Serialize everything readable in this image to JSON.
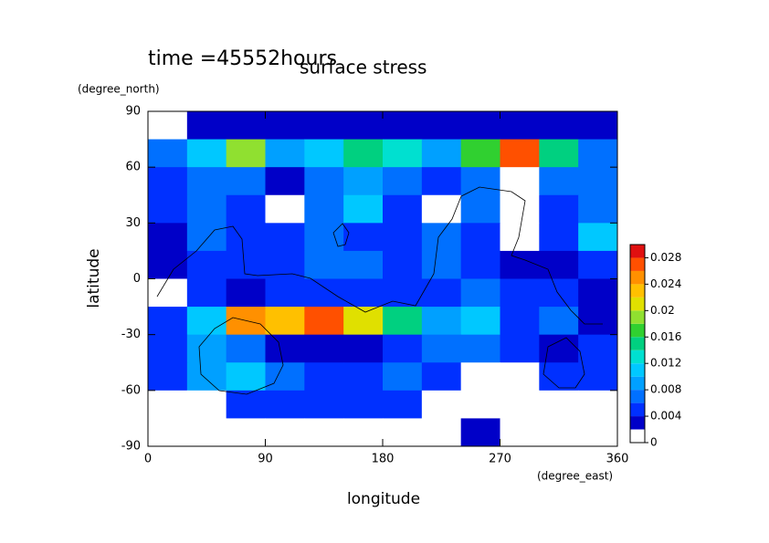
{
  "chart_data": {
    "type": "contour",
    "time_label": "time =45552hours",
    "title": "surface stress",
    "x_label": "longitude",
    "x_unit": "(degree_east)",
    "y_label": "latitude",
    "y_unit": "(degree_north)",
    "xlim": [
      0,
      360
    ],
    "xticks": [
      0,
      90,
      180,
      270,
      360
    ],
    "ylim": [
      -90,
      90
    ],
    "yticks": [
      -90,
      -60,
      -30,
      0,
      30,
      60,
      90
    ],
    "x": [
      15,
      45,
      75,
      105,
      135,
      165,
      195,
      225,
      255,
      285,
      315,
      345
    ],
    "y": [
      82.5,
      67.5,
      52.5,
      37.5,
      22.5,
      7.5,
      -7.5,
      -22.5,
      -37.5,
      -52.5,
      -67.5,
      -82.5
    ],
    "values": [
      [
        0.001,
        0.003,
        0.003,
        0.003,
        0.003,
        0.003,
        0.003,
        0.003,
        0.003,
        0.003,
        0.003,
        0.003
      ],
      [
        0.006,
        0.01,
        0.018,
        0.008,
        0.01,
        0.014,
        0.012,
        0.008,
        0.016,
        0.026,
        0.014,
        0.006
      ],
      [
        0.005,
        0.007,
        0.007,
        0.003,
        0.006,
        0.008,
        0.007,
        0.004,
        0.006,
        0.001,
        0.006,
        0.007
      ],
      [
        0.004,
        0.007,
        0.004,
        0.001,
        0.006,
        0.01,
        0.005,
        0.001,
        0.006,
        0.001,
        0.005,
        0.006
      ],
      [
        0.003,
        0.006,
        0.004,
        0.005,
        0.006,
        0.004,
        0.004,
        0.006,
        0.005,
        0.001,
        0.005,
        0.01
      ],
      [
        0.003,
        0.004,
        0.004,
        0.005,
        0.006,
        0.006,
        0.005,
        0.006,
        0.005,
        0.003,
        0.003,
        0.005
      ],
      [
        0.001,
        0.004,
        0.003,
        0.004,
        0.005,
        0.004,
        0.005,
        0.005,
        0.006,
        0.004,
        0.005,
        0.003
      ],
      [
        0.004,
        0.01,
        0.024,
        0.022,
        0.026,
        0.02,
        0.014,
        0.008,
        0.01,
        0.005,
        0.006,
        0.003
      ],
      [
        0.005,
        0.008,
        0.006,
        0.003,
        0.002,
        0.002,
        0.005,
        0.006,
        0.006,
        0.004,
        0.002,
        0.004
      ],
      [
        0.004,
        0.008,
        0.01,
        0.006,
        0.005,
        0.005,
        0.006,
        0.004,
        0.001,
        0.001,
        0.004,
        0.005
      ],
      [
        0.001,
        0.001,
        0.004,
        0.004,
        0.004,
        0.005,
        0.004,
        0.001,
        0.001,
        0.001,
        0.001,
        0.001
      ],
      [
        0.001,
        0.001,
        0.001,
        0.001,
        0.001,
        0.001,
        0.001,
        0.001,
        0.003,
        0.001,
        0.001,
        0.001
      ]
    ],
    "levels": [
      0,
      0.002,
      0.004,
      0.006,
      0.008,
      0.01,
      0.012,
      0.014,
      0.016,
      0.018,
      0.02,
      0.022,
      0.024,
      0.026,
      0.028,
      0.03
    ],
    "colors": [
      "#ffffff",
      "#0000c8",
      "#0030ff",
      "#0070ff",
      "#00a0ff",
      "#00c8ff",
      "#00e0d0",
      "#00d080",
      "#30d030",
      "#90e030",
      "#e0e000",
      "#ffc000",
      "#ff9000",
      "#ff5000",
      "#e01010"
    ],
    "cticks": [
      0,
      0.004,
      0.008,
      0.012,
      0.016,
      0.02,
      0.024,
      0.028
    ]
  }
}
